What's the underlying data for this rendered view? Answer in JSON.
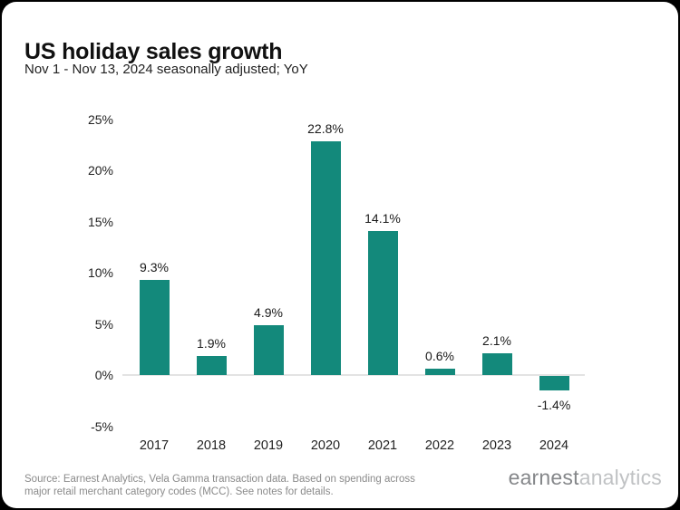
{
  "header": {
    "title": "US holiday sales growth",
    "subtitle": "Nov 1 - Nov 13, 2024 seasonally adjusted; YoY"
  },
  "chart_data": {
    "type": "bar",
    "categories": [
      "2017",
      "2018",
      "2019",
      "2020",
      "2021",
      "2022",
      "2023",
      "2024"
    ],
    "values": [
      9.3,
      1.9,
      4.9,
      22.8,
      14.1,
      0.6,
      2.1,
      -1.4
    ],
    "value_labels": [
      "9.3%",
      "1.9%",
      "4.9%",
      "22.8%",
      "14.1%",
      "0.6%",
      "2.1%",
      "-1.4%"
    ],
    "title": "US holiday sales growth",
    "xlabel": "",
    "ylabel": "",
    "ylim": [
      -5,
      25
    ],
    "yticks": [
      25,
      20,
      15,
      10,
      5,
      0,
      -5
    ],
    "ytick_suffix": "%",
    "grid": false,
    "legend": false,
    "bar_color": "#13897B",
    "zero_line_color": "#e3e3e3",
    "label_color": "#1a1a1a"
  },
  "footer": {
    "source_line1": "Source: Earnest Analytics, Vela Gamma transaction data. Based on spending across",
    "source_line2": "major retail merchant category codes (MCC). See notes for details.",
    "logo_primary": "earnest",
    "logo_secondary": "analytics"
  }
}
